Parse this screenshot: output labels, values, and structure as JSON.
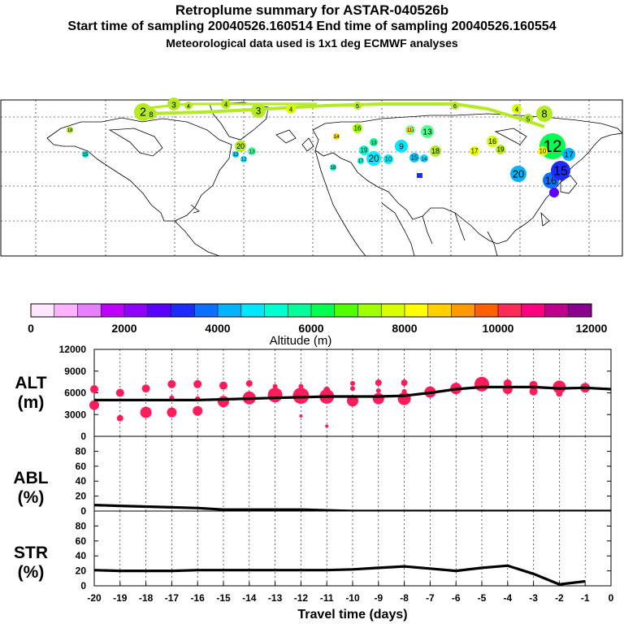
{
  "header": {
    "title": "Retroplume summary for ASTAR-040526b",
    "line2": "Start time of sampling 20040526.160514     End time of sampling 20040526.160554",
    "line3": "Meteorological data used is 1x1 deg ECMWF analyses"
  },
  "map_labels": {
    "top_track": [
      "2",
      "8",
      "3",
      "4",
      "4",
      "3",
      "4",
      "5",
      "6",
      "4",
      "5",
      "8"
    ],
    "scatter": [
      "18",
      "15",
      "16",
      "20",
      "13",
      "12",
      "16",
      "17",
      "19",
      "18",
      "20",
      "10",
      "9",
      "15",
      "14",
      "13",
      "18",
      "11",
      "17",
      "16",
      "19",
      "14",
      "12",
      "13",
      "12",
      "10",
      "20",
      "16",
      "17",
      "15"
    ]
  },
  "colorbar": {
    "ticks": [
      "0",
      "2000",
      "4000",
      "6000",
      "8000",
      "10000",
      "12000"
    ],
    "label": "Altitude (m)",
    "colors": [
      "#ffe6ff",
      "#ffb3ff",
      "#e680ff",
      "#c000ff",
      "#9000ff",
      "#5a00ff",
      "#1c2cff",
      "#0a70ff",
      "#00b4ff",
      "#00e8ff",
      "#00ffd0",
      "#00ff9a",
      "#00ff50",
      "#50ff00",
      "#a0ff00",
      "#d8ff00",
      "#ffff00",
      "#ffd000",
      "#ff9a00",
      "#ff6000",
      "#ff2a58",
      "#ff0080",
      "#c0008c",
      "#8c0090"
    ]
  },
  "chart_data": [
    {
      "type": "line",
      "panel": "ALT",
      "ylabel": "ALT\n(m)",
      "ylabel_lines": [
        "ALT",
        "(m)"
      ],
      "ylim": [
        0,
        12000
      ],
      "yticks": [
        "0",
        "3000",
        "6000",
        "9000",
        "12000"
      ],
      "x": [
        -20,
        -19,
        -18,
        -17,
        -16,
        -15,
        -14,
        -13,
        -12,
        -11,
        -10,
        -9,
        -8,
        -7,
        -6,
        -5,
        -4,
        -3,
        -2,
        -1,
        0
      ],
      "series": [
        {
          "name": "mean altitude",
          "values": [
            5000,
            5000,
            5000,
            5000,
            5000,
            5100,
            5200,
            5300,
            5400,
            5500,
            5500,
            5500,
            5600,
            6000,
            6500,
            6800,
            6800,
            6800,
            6600,
            6700,
            6500
          ]
        }
      ],
      "scatter": {
        "color": "#ff1c5c",
        "points": [
          {
            "x": -20,
            "y": 6500,
            "s": 5
          },
          {
            "x": -20,
            "y": 4300,
            "s": 6
          },
          {
            "x": -19,
            "y": 6000,
            "s": 5
          },
          {
            "x": -19,
            "y": 2500,
            "s": 4
          },
          {
            "x": -18,
            "y": 6600,
            "s": 5
          },
          {
            "x": -18,
            "y": 3300,
            "s": 7
          },
          {
            "x": -17,
            "y": 7200,
            "s": 5
          },
          {
            "x": -17,
            "y": 5300,
            "s": 3
          },
          {
            "x": -17,
            "y": 3300,
            "s": 6
          },
          {
            "x": -16,
            "y": 7200,
            "s": 5
          },
          {
            "x": -16,
            "y": 5200,
            "s": 3
          },
          {
            "x": -16,
            "y": 3500,
            "s": 6
          },
          {
            "x": -15,
            "y": 7000,
            "s": 5
          },
          {
            "x": -15,
            "y": 4800,
            "s": 7
          },
          {
            "x": -14,
            "y": 7300,
            "s": 4
          },
          {
            "x": -14,
            "y": 5300,
            "s": 8
          },
          {
            "x": -13,
            "y": 6900,
            "s": 3
          },
          {
            "x": -13,
            "y": 5700,
            "s": 9
          },
          {
            "x": -12,
            "y": 6900,
            "s": 3
          },
          {
            "x": -12,
            "y": 5600,
            "s": 10
          },
          {
            "x": -12,
            "y": 2800,
            "s": 2
          },
          {
            "x": -11,
            "y": 5500,
            "s": 9
          },
          {
            "x": -11,
            "y": 6400,
            "s": 4
          },
          {
            "x": -11,
            "y": 1400,
            "s": 2
          },
          {
            "x": -10,
            "y": 7300,
            "s": 3
          },
          {
            "x": -10,
            "y": 6600,
            "s": 3
          },
          {
            "x": -10,
            "y": 4900,
            "s": 7
          },
          {
            "x": -9,
            "y": 7400,
            "s": 4
          },
          {
            "x": -9,
            "y": 6300,
            "s": 3
          },
          {
            "x": -9,
            "y": 5200,
            "s": 7
          },
          {
            "x": -8,
            "y": 7400,
            "s": 4
          },
          {
            "x": -8,
            "y": 6200,
            "s": 3
          },
          {
            "x": -8,
            "y": 5200,
            "s": 8
          },
          {
            "x": -7,
            "y": 6100,
            "s": 7
          },
          {
            "x": -6,
            "y": 6600,
            "s": 7
          },
          {
            "x": -5,
            "y": 7200,
            "s": 9
          },
          {
            "x": -4,
            "y": 7300,
            "s": 5
          },
          {
            "x": -4,
            "y": 6500,
            "s": 6
          },
          {
            "x": -3,
            "y": 7100,
            "s": 5
          },
          {
            "x": -3,
            "y": 6200,
            "s": 5
          },
          {
            "x": -2,
            "y": 6800,
            "s": 8
          },
          {
            "x": -2,
            "y": 5900,
            "s": 4
          },
          {
            "x": -1,
            "y": 6700,
            "s": 6
          }
        ]
      }
    },
    {
      "type": "line",
      "panel": "ABL",
      "ylabel": "ABL\n(%)",
      "ylabel_lines": [
        "ABL",
        "(%)"
      ],
      "ylim": [
        0,
        100
      ],
      "yticks": [
        "0",
        "20",
        "40",
        "60",
        "80"
      ],
      "x": [
        -20,
        -19,
        -18,
        -17,
        -16,
        -15,
        -14,
        -13,
        -12,
        -11,
        -10,
        -9,
        -8,
        -7,
        -6,
        -5,
        -4,
        -3,
        -2,
        -1,
        0
      ],
      "series": [
        {
          "name": "ABL fraction",
          "values": [
            8,
            7,
            6,
            5,
            4,
            2,
            2,
            2,
            2,
            1,
            0,
            0,
            0,
            0,
            0,
            0,
            0,
            0,
            0,
            0,
            0
          ]
        }
      ]
    },
    {
      "type": "line",
      "panel": "STR",
      "ylabel": "STR\n(%)",
      "ylabel_lines": [
        "STR",
        "(%)"
      ],
      "ylim": [
        0,
        100
      ],
      "yticks": [
        "0",
        "20",
        "40",
        "60",
        "80"
      ],
      "x": [
        -20,
        -19,
        -18,
        -17,
        -16,
        -15,
        -14,
        -13,
        -12,
        -11,
        -10,
        -9,
        -8,
        -7,
        -6,
        -5,
        -4,
        -3,
        -2,
        -1
      ],
      "series": [
        {
          "name": "stratospheric fraction",
          "values": [
            21,
            20,
            20,
            20,
            21,
            21,
            21,
            21,
            21,
            21,
            22,
            24,
            26,
            23,
            20,
            24,
            27,
            16,
            2,
            6
          ]
        }
      ],
      "xlabel": "Travel time (days)",
      "xticks": [
        "-20",
        "-19",
        "-18",
        "-17",
        "-16",
        "-15",
        "-14",
        "-13",
        "-12",
        "-11",
        "-10",
        "-9",
        "-8",
        "-7",
        "-6",
        "-5",
        "-4",
        "-3",
        "-2",
        "-1",
        "0"
      ]
    }
  ]
}
